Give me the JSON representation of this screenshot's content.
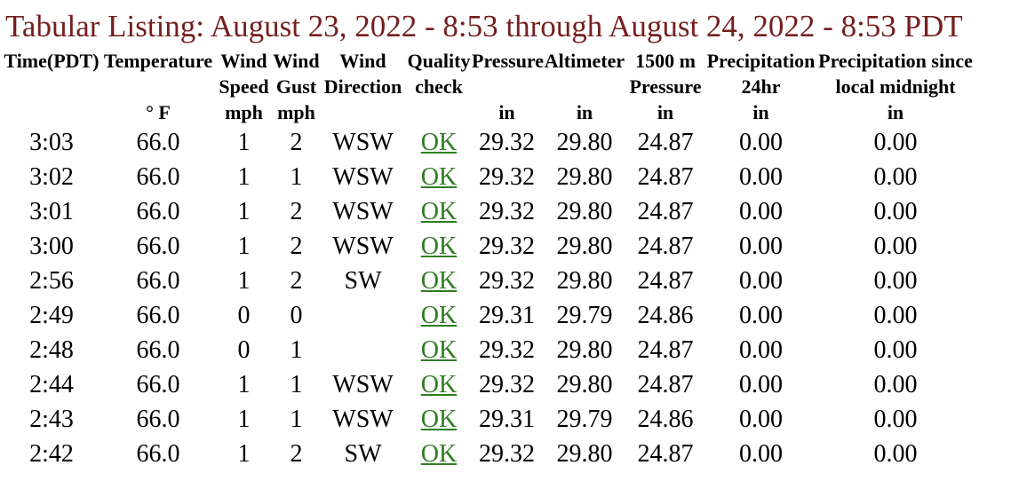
{
  "page_title": "Tabular Listing: August 23, 2022 - 8:53 through August 24, 2022 - 8:53 PDT",
  "colors": {
    "title_text": "#751f1f",
    "ok_link": "#2f7d22",
    "body_text": "#000000",
    "background": "#ffffff"
  },
  "table": {
    "columns": [
      {
        "id": "time",
        "line1": "Time(PDT)",
        "line2": "",
        "unit": ""
      },
      {
        "id": "temperature",
        "line1": "Temperature",
        "line2": "",
        "unit": "° F"
      },
      {
        "id": "wind-speed",
        "line1": "Wind",
        "line2": "Speed",
        "unit": "mph"
      },
      {
        "id": "wind-gust",
        "line1": "Wind",
        "line2": "Gust",
        "unit": "mph"
      },
      {
        "id": "wind-direction",
        "line1": "Wind",
        "line2": "Direction",
        "unit": ""
      },
      {
        "id": "quality-check",
        "line1": "Quality",
        "line2": "check",
        "unit": ""
      },
      {
        "id": "pressure",
        "line1": "Pressure",
        "line2": "",
        "unit": "in"
      },
      {
        "id": "altimeter",
        "line1": "Altimeter",
        "line2": "",
        "unit": "in"
      },
      {
        "id": "pressure-1500m",
        "line1": "1500 m",
        "line2": "Pressure",
        "unit": "in"
      },
      {
        "id": "precipitation-24hr",
        "line1": "Precipitation",
        "line2": "24hr",
        "unit": "in"
      },
      {
        "id": "precipitation-since-midnight",
        "line1": "Precipitation since",
        "line2": "local midnight",
        "unit": "in"
      }
    ],
    "rows": [
      [
        "3:03",
        "66.0",
        "1",
        "2",
        "WSW",
        "OK",
        "29.32",
        "29.80",
        "24.87",
        "0.00",
        "0.00"
      ],
      [
        "3:02",
        "66.0",
        "1",
        "1",
        "WSW",
        "OK",
        "29.32",
        "29.80",
        "24.87",
        "0.00",
        "0.00"
      ],
      [
        "3:01",
        "66.0",
        "1",
        "2",
        "WSW",
        "OK",
        "29.32",
        "29.80",
        "24.87",
        "0.00",
        "0.00"
      ],
      [
        "3:00",
        "66.0",
        "1",
        "2",
        "WSW",
        "OK",
        "29.32",
        "29.80",
        "24.87",
        "0.00",
        "0.00"
      ],
      [
        "2:56",
        "66.0",
        "1",
        "2",
        "SW",
        "OK",
        "29.32",
        "29.80",
        "24.87",
        "0.00",
        "0.00"
      ],
      [
        "2:49",
        "66.0",
        "0",
        "0",
        "",
        "OK",
        "29.31",
        "29.79",
        "24.86",
        "0.00",
        "0.00"
      ],
      [
        "2:48",
        "66.0",
        "0",
        "1",
        "",
        "OK",
        "29.32",
        "29.80",
        "24.87",
        "0.00",
        "0.00"
      ],
      [
        "2:44",
        "66.0",
        "1",
        "1",
        "WSW",
        "OK",
        "29.32",
        "29.80",
        "24.87",
        "0.00",
        "0.00"
      ],
      [
        "2:43",
        "66.0",
        "1",
        "1",
        "WSW",
        "OK",
        "29.31",
        "29.79",
        "24.86",
        "0.00",
        "0.00"
      ],
      [
        "2:42",
        "66.0",
        "1",
        "2",
        "SW",
        "OK",
        "29.32",
        "29.80",
        "24.87",
        "0.00",
        "0.00"
      ]
    ]
  }
}
